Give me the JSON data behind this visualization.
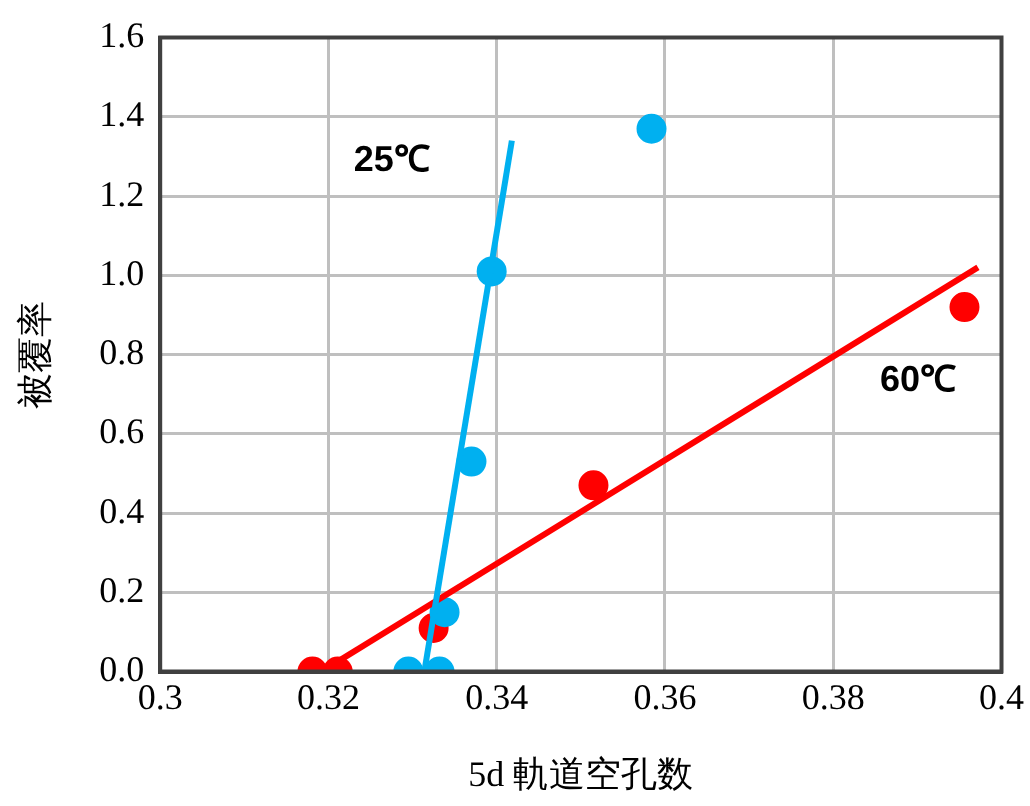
{
  "chart_data": {
    "type": "scatter",
    "xlabel": "5d 軌道空孔数",
    "ylabel": "被覆率",
    "xlim": [
      0.3,
      0.4
    ],
    "xticks": [
      0.3,
      0.32,
      0.34,
      0.36,
      0.38,
      0.4
    ],
    "ylim": [
      0,
      1.6
    ],
    "yticks": [
      {
        "value": 0,
        "label": "0.0"
      },
      {
        "value": 0.2,
        "label": "0.2"
      },
      {
        "value": 0.4,
        "label": "0.4"
      },
      {
        "value": 0.6,
        "label": "0.6"
      },
      {
        "value": 0.8,
        "label": "0.8"
      },
      {
        "value": 1,
        "label": "1.0"
      },
      {
        "value": 1.2,
        "label": "1.2"
      },
      {
        "value": 1.4,
        "label": "1.4"
      },
      {
        "value": 1.6,
        "label": "1.6"
      }
    ],
    "grid": true,
    "legend": false,
    "series": [
      {
        "type": "scatter",
        "color": "#00b0f0",
        "marker": "circle",
        "x": [
          0.3295,
          0.3332,
          0.3338,
          0.337,
          0.3394,
          0.3584
        ],
        "values": [
          0,
          0,
          0.15,
          0.53,
          1.01,
          1.37
        ]
      },
      {
        "type": "scatter",
        "color": "#ff0000",
        "marker": "circle",
        "x": [
          0.3181,
          0.3211,
          0.3325,
          0.3515,
          0.3956
        ],
        "values": [
          0,
          0,
          0.11,
          0.47,
          0.92
        ]
      },
      {
        "type": "line",
        "name": "25℃",
        "color": "#00b0f0",
        "marker": "none",
        "x": [
          0.3314,
          0.3418
        ],
        "values": [
          0,
          1.34
        ]
      },
      {
        "type": "line",
        "name": "60℃",
        "color": "#ff0000",
        "marker": "none",
        "x": [
          0.3207,
          0.3972
        ],
        "values": [
          0.02,
          1.02
        ]
      }
    ]
  }
}
